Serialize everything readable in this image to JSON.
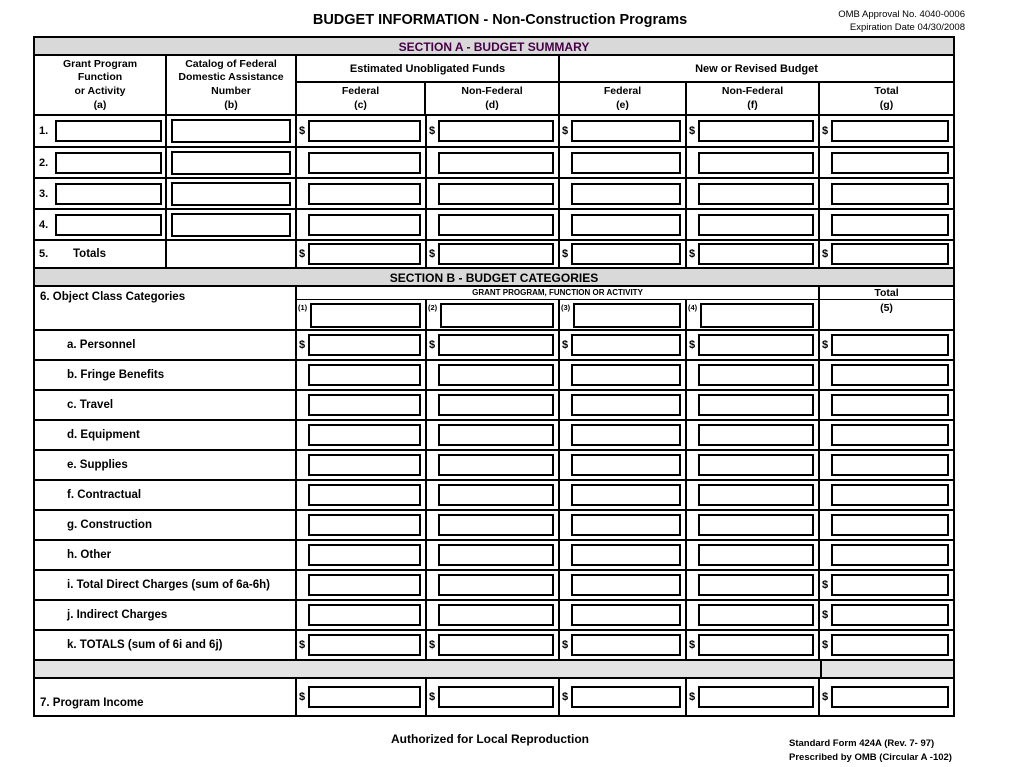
{
  "page": {
    "title": "BUDGET INFORMATION - Non-Construction Programs",
    "omb_approval": "OMB Approval No. 4040-0006",
    "expiration_date": "Expiration Date 04/30/2008",
    "footer_center": "Authorized for Local Reproduction",
    "footer_form": "Standard Form 424A (Rev. 7- 97)",
    "footer_prescribed": "Prescribed by OMB (Circular A -102)"
  },
  "symbols": {
    "dollar": "$"
  },
  "colors": {
    "section_a_title_text": "#470047",
    "band_background": "#d9d9d9",
    "spacer_background": "#e3e3e3",
    "border": "#000000",
    "page_background": "#ffffff"
  },
  "section_a": {
    "title": "SECTION A - BUDGET SUMMARY",
    "headers": {
      "grant_program": "Grant Program\nFunction\nor Activity\n(a)",
      "catalog": "Catalog of Federal\nDomestic Assistance\nNumber\n(b)",
      "estimated_unobligated": "Estimated Unobligated Funds",
      "new_or_revised": "New or Revised Budget",
      "federal_c": "Federal\n(c)",
      "non_federal_d": "Non-Federal\n(d)",
      "federal_e": "Federal\n(e)",
      "non_federal_f": "Non-Federal\n(f)",
      "total_g": "Total\n(g)"
    },
    "rows": [
      {
        "num": "1."
      },
      {
        "num": "2."
      },
      {
        "num": "3."
      },
      {
        "num": "4."
      },
      {
        "num": "5.",
        "label": "Totals"
      }
    ]
  },
  "section_b": {
    "title": "SECTION B - BUDGET CATEGORIES",
    "object_class_label": "6. Object Class Categories",
    "grant_program_header": "GRANT PROGRAM, FUNCTION OR ACTIVITY",
    "total_header": "Total",
    "col_labels": [
      "(1)",
      "(2)",
      "(3)",
      "(4)",
      "(5)"
    ],
    "categories": [
      {
        "label": "a. Personnel"
      },
      {
        "label": "b. Fringe Benefits"
      },
      {
        "label": "c. Travel"
      },
      {
        "label": "d. Equipment"
      },
      {
        "label": "e. Supplies"
      },
      {
        "label": "f. Contractual"
      },
      {
        "label": "g. Construction"
      },
      {
        "label": "h. Other"
      },
      {
        "label": "i. Total Direct Charges (sum of 6a-6h)"
      },
      {
        "label": "j. Indirect Charges"
      },
      {
        "label": "k. TOTALS (sum of 6i and 6j)"
      }
    ],
    "program_income_label": "7. Program Income"
  }
}
